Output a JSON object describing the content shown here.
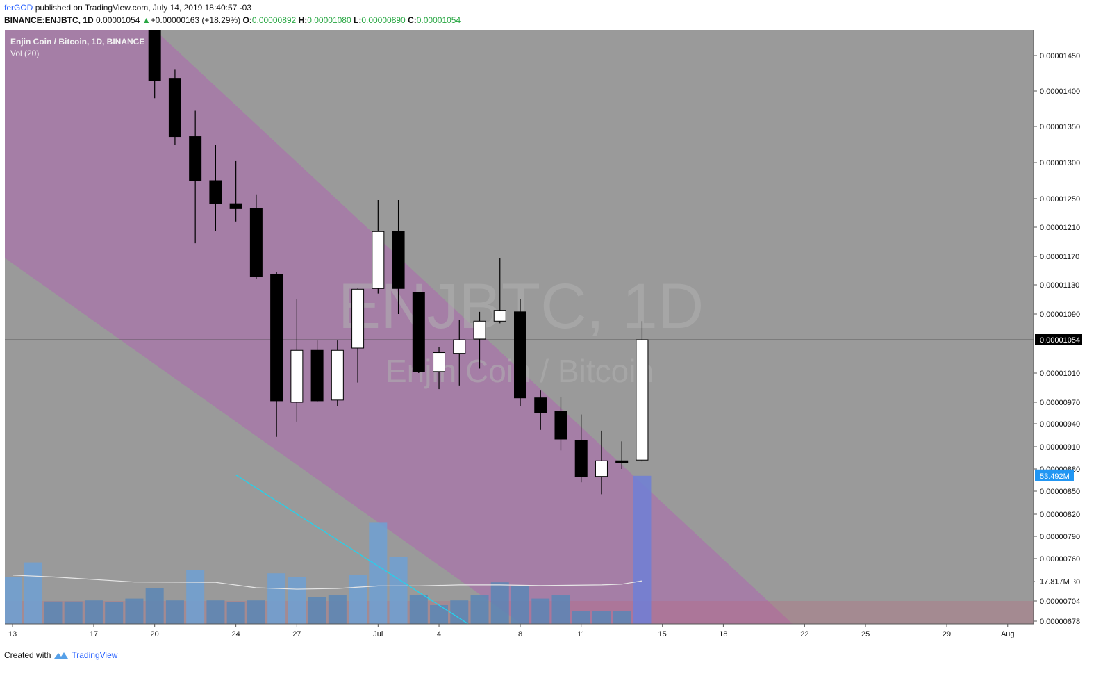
{
  "header": {
    "publisher": "ferGOD",
    "published_text": "published on TradingView.com, July 14, 2019 18:40:57 -03",
    "symbol_line": "BINANCE:ENJBTC, 1D",
    "last": "0.00001054",
    "change": "+0.00000163 (+18.29%)",
    "o_label": "O:",
    "o_value": "0.00000892",
    "h_label": "H:",
    "h_value": "0.00001080",
    "l_label": "L:",
    "l_value": "0.00000890",
    "c_label": "C:",
    "c_value": "0.00001054"
  },
  "legend": {
    "series": "Enjin Coin / Bitcoin, 1D, BINANCE",
    "indicator": "Vol (20)"
  },
  "watermark": {
    "symbol": "ENJBTC, 1D",
    "name": "Enjin Coin / Bitcoin"
  },
  "footer": {
    "created_with": "Created with",
    "brand": "TradingView"
  },
  "colors": {
    "background": "#9a9a9a",
    "channel": "#a57ea6",
    "bull_candle": "#ffffff",
    "bear_candle": "#000000",
    "volume_bar": "#5a86b5",
    "volume_bar_dark": "#4e6d95",
    "volume_bar_light": "#6ea0d3",
    "volume_ma": "#e6e6e6",
    "trend_line": "#22d3ee",
    "last_price_label": "#000000",
    "volume_label": "#2196f3"
  },
  "chart_data": {
    "type": "candlestick",
    "title": "Enjin Coin / Bitcoin, 1D, BINANCE",
    "price_ticks": [
      "0.00001450",
      "0.00001400",
      "0.00001350",
      "0.00001300",
      "0.00001250",
      "0.00001210",
      "0.00001170",
      "0.00001130",
      "0.00001090",
      "0.00001054",
      "0.00001010",
      "0.00000970",
      "0.00000940",
      "0.00000910",
      "0.00000880",
      "0.00000850",
      "0.00000820",
      "0.00000790",
      "0.00000760",
      "0.00000730",
      "0.00000704",
      "0.00000678"
    ],
    "date_ticks": [
      {
        "day": 0,
        "label": "13"
      },
      {
        "day": 4,
        "label": "17"
      },
      {
        "day": 7,
        "label": "20"
      },
      {
        "day": 11,
        "label": "24"
      },
      {
        "day": 14,
        "label": "27"
      },
      {
        "day": 18,
        "label": "Jul"
      },
      {
        "day": 21,
        "label": "4"
      },
      {
        "day": 25,
        "label": "8"
      },
      {
        "day": 28,
        "label": "11"
      },
      {
        "day": 32,
        "label": "15"
      },
      {
        "day": 35,
        "label": "18"
      },
      {
        "day": 39,
        "label": "22"
      },
      {
        "day": 42,
        "label": "25"
      },
      {
        "day": 46,
        "label": "29"
      },
      {
        "day": 49,
        "label": "Aug"
      }
    ],
    "candles": [
      {
        "date": "2019-06-20",
        "o": 1.5e-05,
        "h": 1.52e-05,
        "l": 1.39e-05,
        "c": 1.415e-05
      },
      {
        "date": "2019-06-21",
        "o": 1.418e-05,
        "h": 1.43e-05,
        "l": 1.325e-05,
        "c": 1.336e-05
      },
      {
        "date": "2019-06-22",
        "o": 1.336e-05,
        "h": 1.372e-05,
        "l": 1.188e-05,
        "c": 1.275e-05
      },
      {
        "date": "2019-06-23",
        "o": 1.275e-05,
        "h": 1.325e-05,
        "l": 1.205e-05,
        "c": 1.243e-05
      },
      {
        "date": "2019-06-24",
        "o": 1.243e-05,
        "h": 1.302e-05,
        "l": 1.218e-05,
        "c": 1.236e-05
      },
      {
        "date": "2019-06-25",
        "o": 1.236e-05,
        "h": 1.256e-05,
        "l": 1.138e-05,
        "c": 1.142e-05
      },
      {
        "date": "2019-06-26",
        "o": 1.145e-05,
        "h": 1.148e-05,
        "l": 9.23e-06,
        "c": 9.72e-06
      },
      {
        "date": "2019-06-27",
        "o": 9.7e-06,
        "h": 1.11e-05,
        "l": 9.43e-06,
        "c": 1.04e-05
      },
      {
        "date": "2019-06-28",
        "o": 1.04e-05,
        "h": 1.053e-05,
        "l": 9.7e-06,
        "c": 9.72e-06
      },
      {
        "date": "2019-06-29",
        "o": 9.73e-06,
        "h": 1.053e-05,
        "l": 9.65e-06,
        "c": 1.04e-05
      },
      {
        "date": "2019-06-30",
        "o": 1.043e-05,
        "h": 1.125e-05,
        "l": 9.97e-06,
        "c": 1.124e-05
      },
      {
        "date": "2019-07-01",
        "o": 1.125e-05,
        "h": 1.248e-05,
        "l": 1.118e-05,
        "c": 1.204e-05
      },
      {
        "date": "2019-07-02",
        "o": 1.204e-05,
        "h": 1.248e-05,
        "l": 1.09e-05,
        "c": 1.125e-05
      },
      {
        "date": "2019-07-03",
        "o": 1.12e-05,
        "h": 1.12e-05,
        "l": 1.01e-05,
        "c": 1.012e-05
      },
      {
        "date": "2019-07-04",
        "o": 1.012e-05,
        "h": 1.044e-05,
        "l": 9.88e-06,
        "c": 1.037e-05
      },
      {
        "date": "2019-07-05",
        "o": 1.036e-05,
        "h": 1.082e-05,
        "l": 9.93e-06,
        "c": 1.054e-05
      },
      {
        "date": "2019-07-06",
        "o": 1.055e-05,
        "h": 1.093e-05,
        "l": 1.016e-05,
        "c": 1.08e-05
      },
      {
        "date": "2019-07-07",
        "o": 1.08e-05,
        "h": 1.168e-05,
        "l": 1.077e-05,
        "c": 1.095e-05
      },
      {
        "date": "2019-07-08",
        "o": 1.093e-05,
        "h": 1.11e-05,
        "l": 9.65e-06,
        "c": 9.76e-06
      },
      {
        "date": "2019-07-09",
        "o": 9.76e-06,
        "h": 9.86e-06,
        "l": 9.32e-06,
        "c": 9.55e-06
      },
      {
        "date": "2019-07-10",
        "o": 9.57e-06,
        "h": 9.77e-06,
        "l": 9.05e-06,
        "c": 9.2e-06
      },
      {
        "date": "2019-07-11",
        "o": 9.18e-06,
        "h": 9.53e-06,
        "l": 8.62e-06,
        "c": 8.7e-06
      },
      {
        "date": "2019-07-12",
        "o": 8.7e-06,
        "h": 9.31e-06,
        "l": 8.46e-06,
        "c": 8.91e-06
      },
      {
        "date": "2019-07-13",
        "o": 8.91e-06,
        "h": 9.17e-06,
        "l": 8.8e-06,
        "c": 8.89e-06
      },
      {
        "date": "2019-07-14",
        "o": 8.92e-06,
        "h": 1.08e-05,
        "l": 8.9e-06,
        "c": 1.054e-05
      }
    ],
    "volume_label": "53.492M",
    "volume_ma_label": "17.817M",
    "volume": [
      {
        "day": 0,
        "v": 13.0
      },
      {
        "day": 1,
        "v": 17.0
      },
      {
        "day": 2,
        "v": 6.2
      },
      {
        "day": 3,
        "v": 6.2
      },
      {
        "day": 4,
        "v": 6.5
      },
      {
        "day": 5,
        "v": 6.0
      },
      {
        "day": 6,
        "v": 7.0
      },
      {
        "day": 7,
        "v": 10.0
      },
      {
        "day": 8,
        "v": 6.5
      },
      {
        "day": 9,
        "v": 15.0
      },
      {
        "day": 10,
        "v": 6.5
      },
      {
        "day": 11,
        "v": 6.0
      },
      {
        "day": 12,
        "v": 6.5
      },
      {
        "day": 13,
        "v": 14.0
      },
      {
        "day": 14,
        "v": 13.0
      },
      {
        "day": 15,
        "v": 7.5
      },
      {
        "day": 16,
        "v": 8.0
      },
      {
        "day": 17,
        "v": 13.5
      },
      {
        "day": 18,
        "v": 28.0
      },
      {
        "day": 19,
        "v": 18.5
      },
      {
        "day": 20,
        "v": 8.0
      },
      {
        "day": 21,
        "v": 5.2
      },
      {
        "day": 22,
        "v": 6.5
      },
      {
        "day": 23,
        "v": 8.0
      },
      {
        "day": 24,
        "v": 11.5
      },
      {
        "day": 25,
        "v": 10.5
      },
      {
        "day": 26,
        "v": 7.0
      },
      {
        "day": 27,
        "v": 8.0
      },
      {
        "day": 28,
        "v": 3.5
      },
      {
        "day": 29,
        "v": 3.5
      },
      {
        "day": 30,
        "v": 3.5
      },
      {
        "day": 31,
        "v": 41.0
      }
    ],
    "volume_ma": [
      {
        "day": 0,
        "v": 13.5
      },
      {
        "day": 2,
        "v": 13.0
      },
      {
        "day": 6,
        "v": 11.6
      },
      {
        "day": 10,
        "v": 11.5
      },
      {
        "day": 12,
        "v": 10.0
      },
      {
        "day": 14,
        "v": 9.6
      },
      {
        "day": 16,
        "v": 9.8
      },
      {
        "day": 18,
        "v": 10.5
      },
      {
        "day": 20,
        "v": 10.5
      },
      {
        "day": 22,
        "v": 10.8
      },
      {
        "day": 24,
        "v": 10.8
      },
      {
        "day": 26,
        "v": 10.6
      },
      {
        "day": 29,
        "v": 10.8
      },
      {
        "day": 30,
        "v": 11.0
      },
      {
        "day": 31,
        "v": 11.9
      }
    ],
    "channel": {
      "upper": [
        {
          "day": -1,
          "price": 1.7e-05
        },
        {
          "day": 39,
          "price": 6.6e-06
        }
      ],
      "lower": [
        {
          "day": -1,
          "price": 1.18e-05
        },
        {
          "day": 28,
          "price": 6.2e-06
        }
      ]
    },
    "trend_line": [
      {
        "day": 11,
        "price": 8.72e-06
      },
      {
        "day": 23,
        "price": 6.65e-06
      }
    ],
    "support_zone": [
      6.66e-06,
      7.04e-06
    ]
  }
}
